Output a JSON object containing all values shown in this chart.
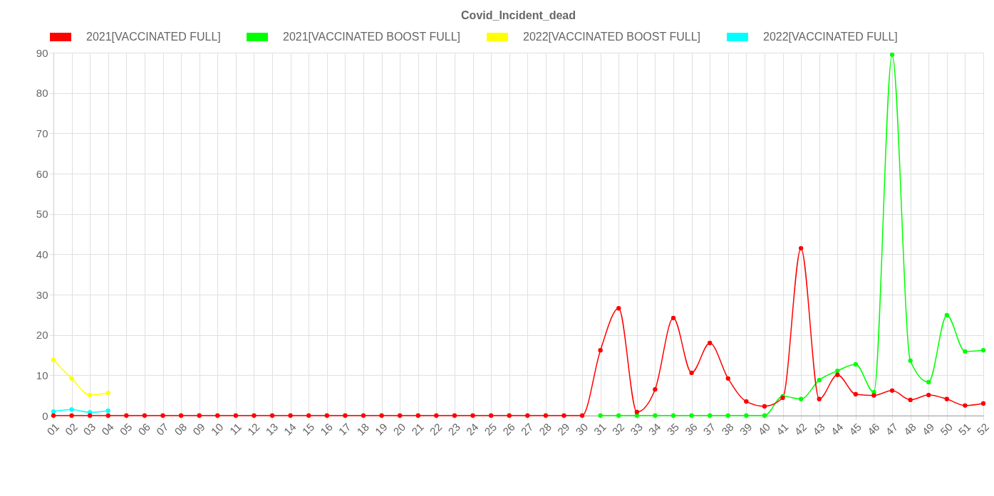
{
  "chart_data": {
    "type": "line",
    "title": "Covid_Incident_dead",
    "categories": [
      "01",
      "02",
      "03",
      "04",
      "05",
      "06",
      "07",
      "08",
      "09",
      "10",
      "11",
      "12",
      "13",
      "14",
      "15",
      "16",
      "17",
      "18",
      "19",
      "20",
      "21",
      "22",
      "23",
      "24",
      "25",
      "26",
      "27",
      "28",
      "29",
      "30",
      "31",
      "32",
      "33",
      "34",
      "35",
      "36",
      "37",
      "38",
      "39",
      "40",
      "41",
      "42",
      "43",
      "44",
      "45",
      "46",
      "47",
      "48",
      "49",
      "50",
      "51",
      "52"
    ],
    "series": [
      {
        "name": "2021[VACCINATED FULL]",
        "color": "#ff0000",
        "values": [
          0,
          0,
          0,
          0,
          0,
          0,
          0,
          0,
          0,
          0,
          0,
          0,
          0,
          0,
          0,
          0,
          0,
          0,
          0,
          0,
          0,
          0,
          0,
          0,
          0,
          0,
          0,
          0,
          0,
          0,
          16.2,
          26.6,
          0.9,
          6.5,
          24.2,
          10.6,
          18.0,
          9.2,
          3.5,
          2.3,
          4.4,
          41.5,
          4.1,
          10.1,
          5.3,
          5.0,
          6.2,
          3.9,
          5.1,
          4.1,
          2.5,
          3.0
        ]
      },
      {
        "name": "2021[VACCINATED BOOST FULL]",
        "color": "#00ff00",
        "values": [
          null,
          null,
          null,
          null,
          null,
          null,
          null,
          null,
          null,
          null,
          null,
          null,
          null,
          null,
          null,
          null,
          null,
          null,
          null,
          null,
          null,
          null,
          null,
          null,
          null,
          null,
          null,
          null,
          null,
          null,
          0,
          0,
          0,
          0,
          0,
          0,
          0,
          0,
          0,
          0,
          4.8,
          4.1,
          8.8,
          11.1,
          12.7,
          5.8,
          89.5,
          13.6,
          8.3,
          24.9,
          15.9,
          16.2
        ]
      },
      {
        "name": "2022[VACCINATED BOOST FULL]",
        "color": "#ffff00",
        "values": [
          13.8,
          9.2,
          5.1,
          5.6,
          null,
          null,
          null,
          null,
          null,
          null,
          null,
          null,
          null,
          null,
          null,
          null,
          null,
          null,
          null,
          null,
          null,
          null,
          null,
          null,
          null,
          null,
          null,
          null,
          null,
          null,
          null,
          null,
          null,
          null,
          null,
          null,
          null,
          null,
          null,
          null,
          null,
          null,
          null,
          null,
          null,
          null,
          null,
          null,
          null,
          null,
          null,
          null
        ]
      },
      {
        "name": "2022[VACCINATED FULL]",
        "color": "#00ffff",
        "values": [
          1.0,
          1.5,
          0.8,
          1.2,
          null,
          null,
          null,
          null,
          null,
          null,
          null,
          null,
          null,
          null,
          null,
          null,
          null,
          null,
          null,
          null,
          null,
          null,
          null,
          null,
          null,
          null,
          null,
          null,
          null,
          null,
          null,
          null,
          null,
          null,
          null,
          null,
          null,
          null,
          null,
          null,
          null,
          null,
          null,
          null,
          null,
          null,
          null,
          null,
          null,
          null,
          null,
          null
        ]
      }
    ],
    "ylim": [
      0,
      90
    ],
    "yticks": [
      0,
      10,
      20,
      30,
      40,
      50,
      60,
      70,
      80,
      90
    ],
    "grid": true,
    "legend": "top",
    "marker": "circle",
    "line_style": "solid"
  }
}
